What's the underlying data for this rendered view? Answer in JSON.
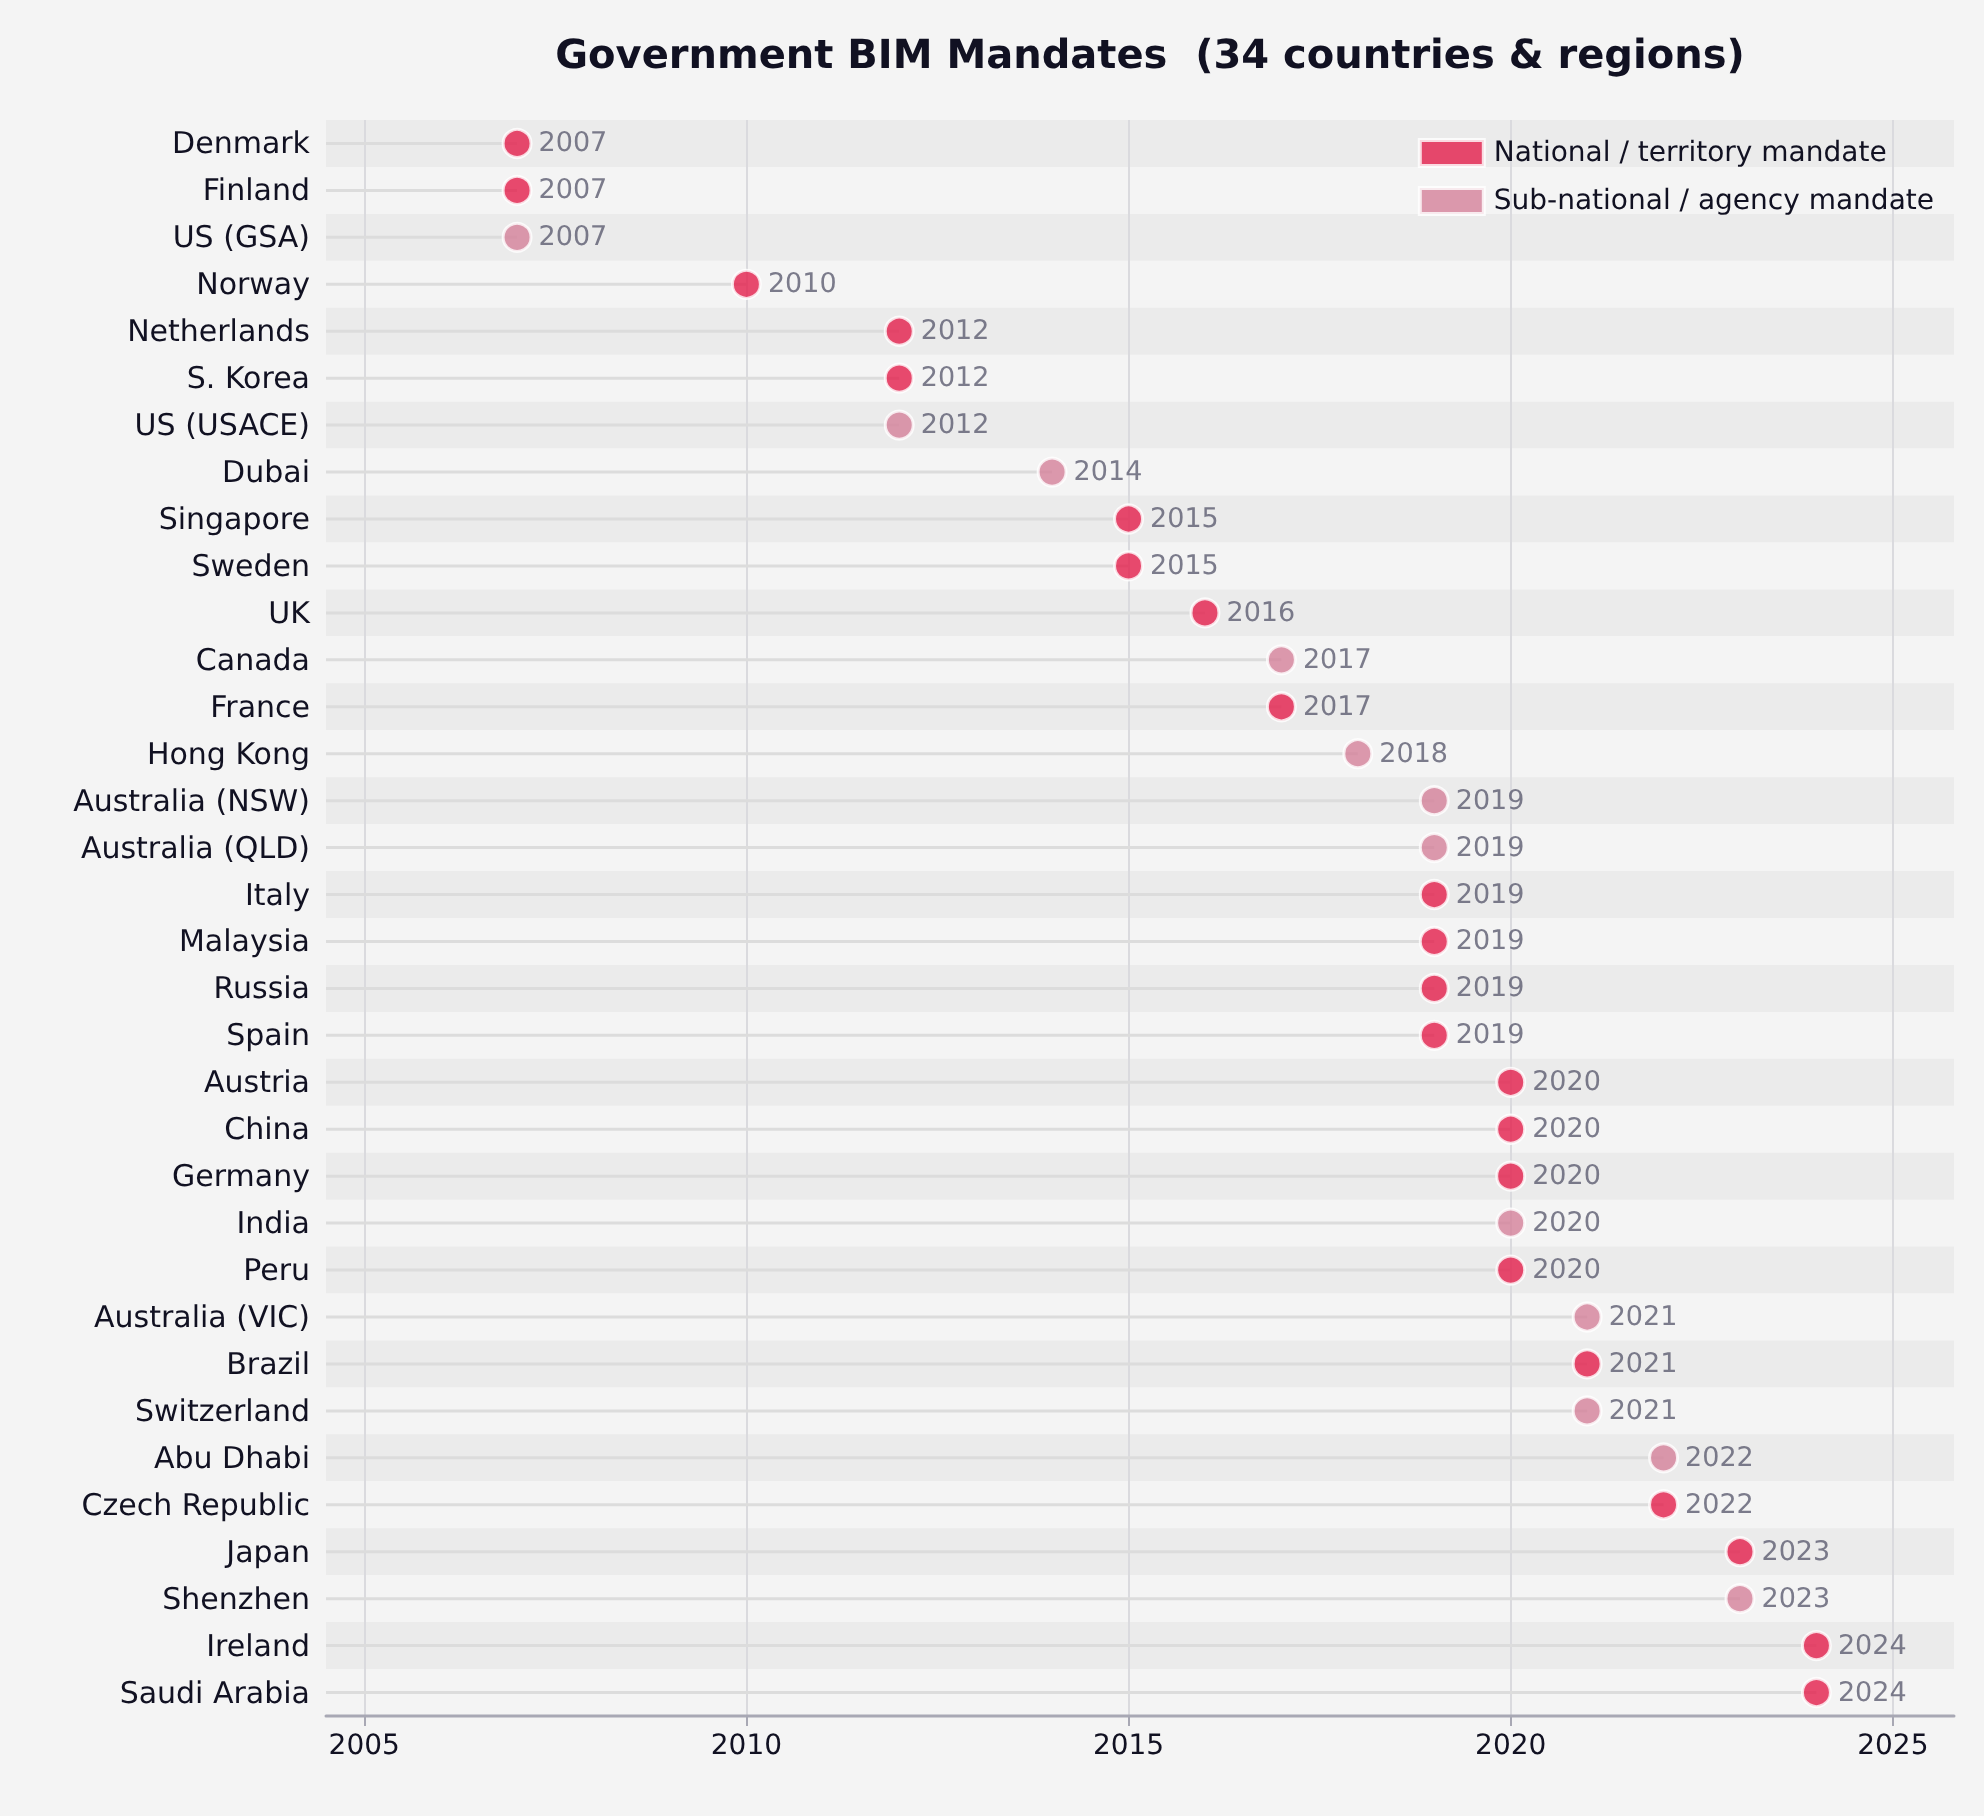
{
  "chart_data": {
    "type": "lollipop",
    "orientation": "horizontal",
    "title": "Government BIM Mandates  (34 countries & regions)",
    "categories": [
      "Denmark",
      "Finland",
      "US (GSA)",
      "Norway",
      "Netherlands",
      "S. Korea",
      "US (USACE)",
      "Dubai",
      "Singapore",
      "Sweden",
      "UK",
      "Canada",
      "France",
      "Hong Kong",
      "Australia (NSW)",
      "Australia (QLD)",
      "Italy",
      "Malaysia",
      "Russia",
      "Spain",
      "Austria",
      "China",
      "Germany",
      "India",
      "Peru",
      "Australia (VIC)",
      "Brazil",
      "Switzerland",
      "Abu Dhabi",
      "Czech Republic",
      "Japan",
      "Shenzhen",
      "Ireland",
      "Saudi Arabia"
    ],
    "series": [
      {
        "name": "National / territory mandate",
        "color": "#e31e4b",
        "values": [
          2007,
          2007,
          null,
          2010,
          2012,
          2012,
          null,
          null,
          2015,
          2015,
          2016,
          null,
          2017,
          null,
          null,
          null,
          2019,
          2019,
          2019,
          2019,
          2020,
          2020,
          2020,
          null,
          2020,
          null,
          2021,
          null,
          null,
          2022,
          2023,
          null,
          2024,
          2024
        ]
      },
      {
        "name": "Sub-national / agency mandate",
        "color": "#d4819a",
        "values": [
          null,
          null,
          2007,
          null,
          null,
          null,
          2012,
          2014,
          null,
          null,
          null,
          2017,
          null,
          2018,
          2019,
          2019,
          null,
          null,
          null,
          null,
          null,
          null,
          null,
          2020,
          null,
          2021,
          null,
          2021,
          2022,
          null,
          null,
          2023,
          null,
          null
        ]
      }
    ],
    "xlim": [
      2004.5,
      2025.8
    ],
    "xticks": [
      2005,
      2010,
      2015,
      2020,
      2025
    ],
    "grid": "x",
    "legend": "top right",
    "marker": "circle",
    "data_labels": true
  }
}
